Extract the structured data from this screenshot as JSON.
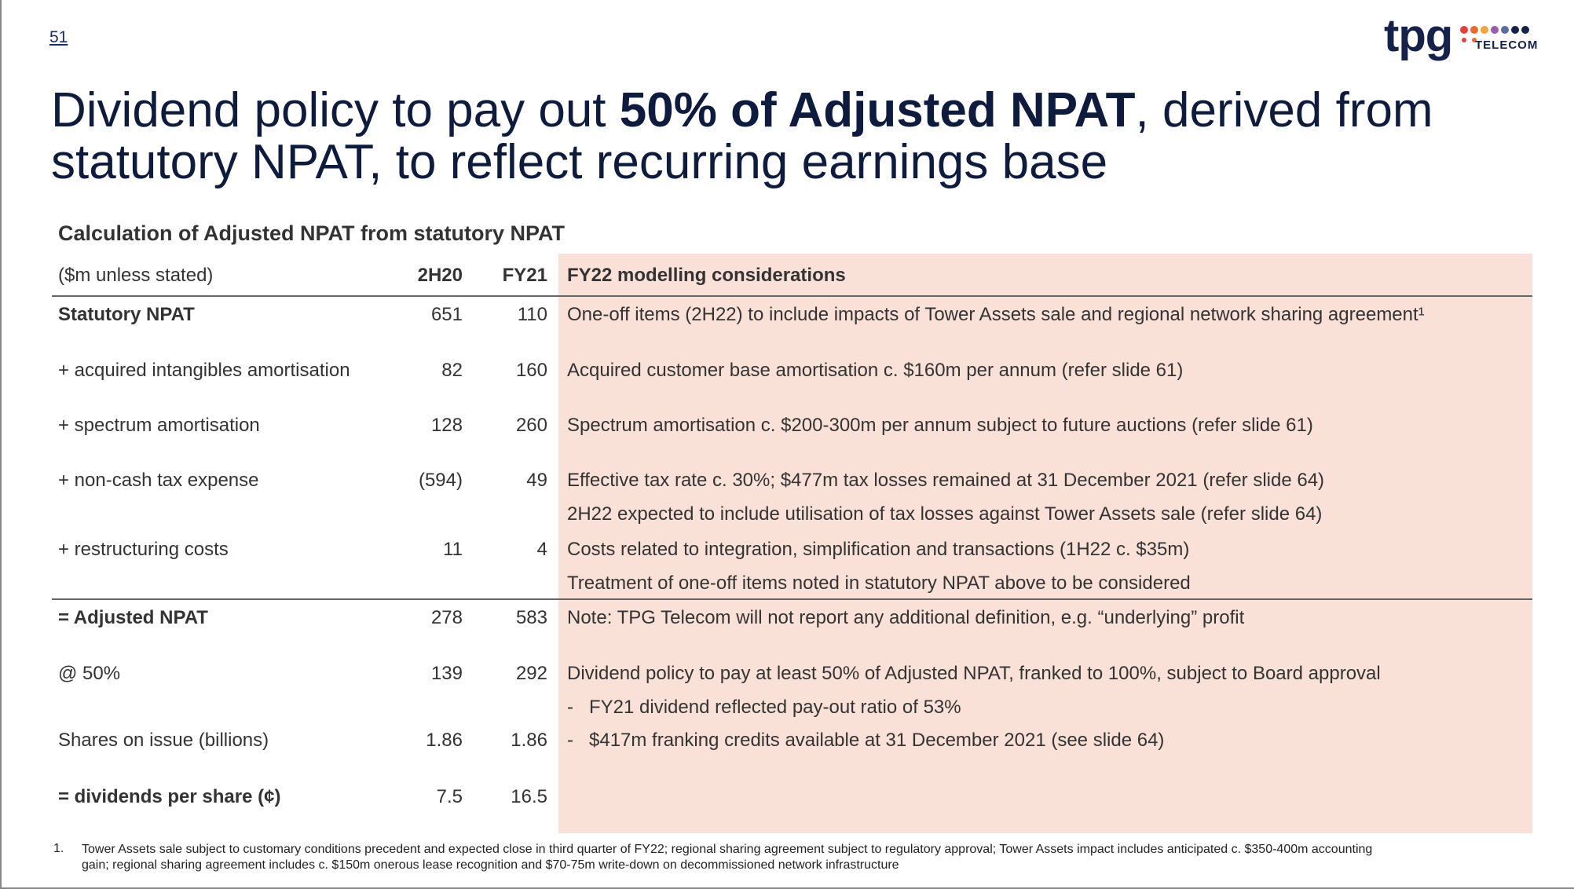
{
  "page_number": "51",
  "logo": {
    "brand": "tpg",
    "sub": "TELECOM"
  },
  "title": {
    "line1": [
      "Dividend policy to pay out ",
      "50% of Adjusted NPAT",
      ", derived from"
    ],
    "line2": "statutory NPAT, to reflect recurring earnings base"
  },
  "table": {
    "title": "Calculation of Adjusted NPAT from statutory NPAT",
    "header": [
      "($m unless stated)",
      "2H20",
      "FY21",
      "FY22 modelling considerations"
    ],
    "rows": [
      {
        "label": "Statutory NPAT",
        "bold": true,
        "2H20": "651",
        "FY21": "110",
        "notes": [
          "One-off items (2H22) to include impacts of Tower Assets sale and regional network sharing agreement¹"
        ]
      },
      {
        "label": "+ acquired intangibles amortisation",
        "2H20": "82",
        "FY21": "160",
        "notes": [
          "Acquired customer base amortisation c. $160m per annum (refer slide 61)"
        ]
      },
      {
        "label": "+ spectrum amortisation",
        "2H20": "128",
        "FY21": "260",
        "notes": [
          "Spectrum amortisation c. $200-300m per annum subject to future auctions (refer slide 61)"
        ]
      },
      {
        "label": "+ non-cash tax expense",
        "2H20": "(594)",
        "FY21": "49",
        "notes": [
          "Effective tax rate c. 30%; $477m tax losses remained at 31 December 2021 (refer slide 64)",
          "2H22 expected to include utilisation of tax losses against Tower Assets sale (refer slide 64)"
        ]
      },
      {
        "label": "+ restructuring costs",
        "2H20": "11",
        "FY21": "4",
        "notes": [
          "Costs related to integration, simplification and transactions (1H22 c. $35m)",
          "Treatment of one-off items noted in statutory NPAT above to be considered"
        ]
      },
      {
        "label": "= Adjusted NPAT",
        "bold": true,
        "2H20": "278",
        "FY21": "583",
        "notes": [
          "Note: TPG Telecom will not report any additional definition, e.g. “underlying” profit"
        ]
      },
      {
        "label": "@ 50%",
        "2H20": "139",
        "FY21": "292",
        "notes": [
          "Dividend policy to pay at least 50% of Adjusted NPAT, franked to 100%, subject to Board approval",
          {
            "bullet": "-",
            "text": "FY21 dividend reflected pay-out ratio of 53%"
          }
        ]
      },
      {
        "label": "Shares on issue (billions)",
        "2H20": "1.86",
        "FY21": "1.86",
        "notes": [
          {
            "bullet": "-",
            "text": "$417m franking credits available at 31 December 2021 (see slide 64)"
          }
        ]
      },
      {
        "label": "= dividends per share (¢)",
        "bold": true,
        "2H20": "7.5",
        "FY21": "16.5",
        "notes": []
      }
    ]
  },
  "footnote": {
    "marker": "1.",
    "lines": [
      "Tower Assets sale subject to customary conditions precedent and expected close in third quarter of FY22; regional sharing agreement subject to regulatory approval; Tower Assets impact includes anticipated c. $350-400m accounting",
      "gain; regional sharing agreement includes c. $150m onerous lease recognition and $70-75m write-down on decommissioned network infrastructure"
    ]
  }
}
